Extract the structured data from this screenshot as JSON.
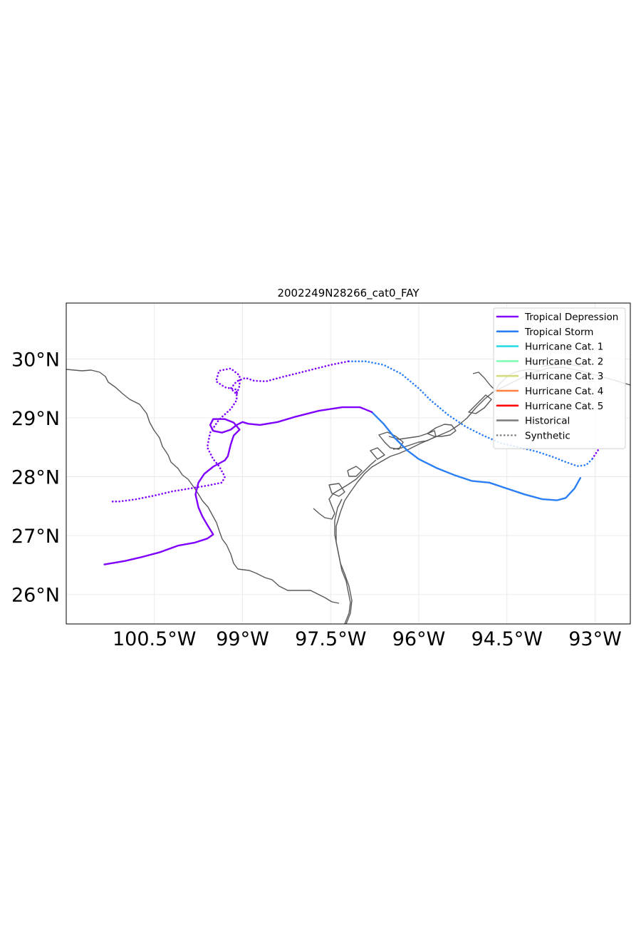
{
  "title": "2002249N28266_cat0_FAY",
  "map": {
    "lon_range": [
      -102.0,
      -92.4
    ],
    "lat_range": [
      25.5,
      30.95
    ],
    "lon_ticks": [
      {
        "value": -100.5,
        "label": "100.5°W"
      },
      {
        "value": -99.0,
        "label": "99°W"
      },
      {
        "value": -97.5,
        "label": "97.5°W"
      },
      {
        "value": -96.0,
        "label": "96°W"
      },
      {
        "value": -94.5,
        "label": "94.5°W"
      },
      {
        "value": -93.0,
        "label": "93°W"
      }
    ],
    "lat_ticks": [
      {
        "value": 30,
        "label": "30°N"
      },
      {
        "value": 29,
        "label": "29°N"
      },
      {
        "value": 28,
        "label": "28°N"
      },
      {
        "value": 27,
        "label": "27°N"
      },
      {
        "value": 26,
        "label": "26°N"
      }
    ],
    "grid": true,
    "coastline_color": "#595959"
  },
  "legend": {
    "placement": "top-right",
    "entries": [
      {
        "label": "Tropical Depression",
        "color": "#7f00ff",
        "style": "solid"
      },
      {
        "label": "Tropical Storm",
        "color": "#2b7ff5",
        "style": "solid"
      },
      {
        "label": "Hurricane Cat. 1",
        "color": "#2bdce4",
        "style": "solid"
      },
      {
        "label": "Hurricane Cat. 2",
        "color": "#81ffb5",
        "style": "solid"
      },
      {
        "label": "Hurricane Cat. 3",
        "color": "#d4dc7f",
        "style": "solid"
      },
      {
        "label": "Hurricane Cat. 4",
        "color": "#ff7f40",
        "style": "solid"
      },
      {
        "label": "Hurricane Cat. 5",
        "color": "#ff0000",
        "style": "solid"
      },
      {
        "label": "Historical",
        "color": "#808080",
        "style": "solid"
      },
      {
        "label": "Synthetic",
        "color": "#808080",
        "style": "dotted"
      }
    ]
  },
  "chart_data": {
    "type": "map-tracks",
    "tracks": [
      {
        "kind": "historical",
        "segments": [
          {
            "category": "Tropical Storm",
            "color": "#2b7ff5",
            "points": [
              [
                -93.25,
                27.98
              ],
              [
                -93.35,
                27.8
              ],
              [
                -93.5,
                27.64
              ],
              [
                -93.65,
                27.6
              ],
              [
                -93.9,
                27.62
              ],
              [
                -94.2,
                27.7
              ],
              [
                -94.5,
                27.8
              ],
              [
                -94.8,
                27.9
              ],
              [
                -95.1,
                27.93
              ],
              [
                -95.4,
                28.03
              ],
              [
                -95.7,
                28.15
              ],
              [
                -96.0,
                28.3
              ],
              [
                -96.2,
                28.45
              ],
              [
                -96.4,
                28.65
              ],
              [
                -96.6,
                28.9
              ],
              [
                -96.8,
                29.1
              ]
            ]
          },
          {
            "category": "Tropical Depression",
            "color": "#7f00ff",
            "points": [
              [
                -96.8,
                29.1
              ],
              [
                -97.0,
                29.18
              ],
              [
                -97.3,
                29.18
              ],
              [
                -97.7,
                29.12
              ],
              [
                -98.1,
                29.02
              ],
              [
                -98.4,
                28.93
              ],
              [
                -98.7,
                28.88
              ],
              [
                -98.9,
                28.9
              ],
              [
                -99.0,
                28.93
              ],
              [
                -99.1,
                28.88
              ],
              [
                -99.2,
                28.8
              ],
              [
                -99.35,
                28.75
              ],
              [
                -99.5,
                28.78
              ],
              [
                -99.55,
                28.88
              ],
              [
                -99.5,
                28.98
              ],
              [
                -99.3,
                28.98
              ],
              [
                -99.15,
                28.92
              ],
              [
                -99.05,
                28.8
              ],
              [
                -99.15,
                28.7
              ],
              [
                -99.2,
                28.55
              ],
              [
                -99.25,
                28.35
              ],
              [
                -99.3,
                28.28
              ],
              [
                -99.5,
                28.17
              ],
              [
                -99.65,
                28.05
              ],
              [
                -99.75,
                27.9
              ],
              [
                -99.8,
                27.7
              ],
              [
                -99.75,
                27.48
              ],
              [
                -99.68,
                27.32
              ],
              [
                -99.58,
                27.15
              ],
              [
                -99.5,
                27.02
              ],
              [
                -99.6,
                26.95
              ],
              [
                -99.82,
                26.88
              ],
              [
                -100.1,
                26.83
              ],
              [
                -100.4,
                26.72
              ],
              [
                -100.7,
                26.64
              ],
              [
                -101.0,
                26.57
              ],
              [
                -101.35,
                26.51
              ]
            ]
          }
        ]
      },
      {
        "kind": "synthetic",
        "segments": [
          {
            "category": "Tropical Depression",
            "color": "#7f00ff",
            "points": [
              [
                -92.95,
                28.45
              ],
              [
                -93.05,
                28.3
              ]
            ]
          },
          {
            "category": "Tropical Storm",
            "color": "#2b7ff5",
            "points": [
              [
                -93.05,
                28.3
              ],
              [
                -93.15,
                28.2
              ],
              [
                -93.3,
                28.18
              ],
              [
                -93.5,
                28.25
              ],
              [
                -93.7,
                28.33
              ],
              [
                -94.0,
                28.43
              ],
              [
                -94.3,
                28.5
              ],
              [
                -94.6,
                28.57
              ],
              [
                -94.9,
                28.7
              ],
              [
                -95.2,
                28.85
              ],
              [
                -95.5,
                29.05
              ],
              [
                -95.8,
                29.3
              ],
              [
                -96.0,
                29.5
              ],
              [
                -96.3,
                29.75
              ],
              [
                -96.6,
                29.9
              ],
              [
                -96.9,
                29.96
              ],
              [
                -97.2,
                29.96
              ]
            ]
          },
          {
            "category": "Tropical Depression",
            "color": "#7f00ff",
            "points": [
              [
                -97.2,
                29.96
              ],
              [
                -97.5,
                29.9
              ],
              [
                -97.9,
                29.8
              ],
              [
                -98.3,
                29.7
              ],
              [
                -98.6,
                29.62
              ],
              [
                -98.8,
                29.63
              ],
              [
                -98.95,
                29.68
              ],
              [
                -99.1,
                29.62
              ],
              [
                -99.2,
                29.5
              ],
              [
                -99.1,
                29.4
              ],
              [
                -99.05,
                29.55
              ],
              [
                -99.05,
                29.72
              ],
              [
                -99.2,
                29.84
              ],
              [
                -99.4,
                29.8
              ],
              [
                -99.45,
                29.62
              ],
              [
                -99.3,
                29.52
              ],
              [
                -99.1,
                29.48
              ],
              [
                -99.1,
                29.3
              ],
              [
                -99.2,
                29.15
              ],
              [
                -99.4,
                28.97
              ],
              [
                -99.55,
                28.75
              ],
              [
                -99.6,
                28.5
              ],
              [
                -99.5,
                28.3
              ],
              [
                -99.4,
                28.18
              ],
              [
                -99.3,
                28.0
              ],
              [
                -99.35,
                27.9
              ],
              [
                -99.6,
                27.85
              ],
              [
                -99.9,
                27.8
              ],
              [
                -100.2,
                27.75
              ],
              [
                -100.5,
                27.68
              ],
              [
                -100.8,
                27.62
              ],
              [
                -101.1,
                27.58
              ],
              [
                -101.25,
                27.58
              ]
            ]
          }
        ]
      }
    ]
  }
}
